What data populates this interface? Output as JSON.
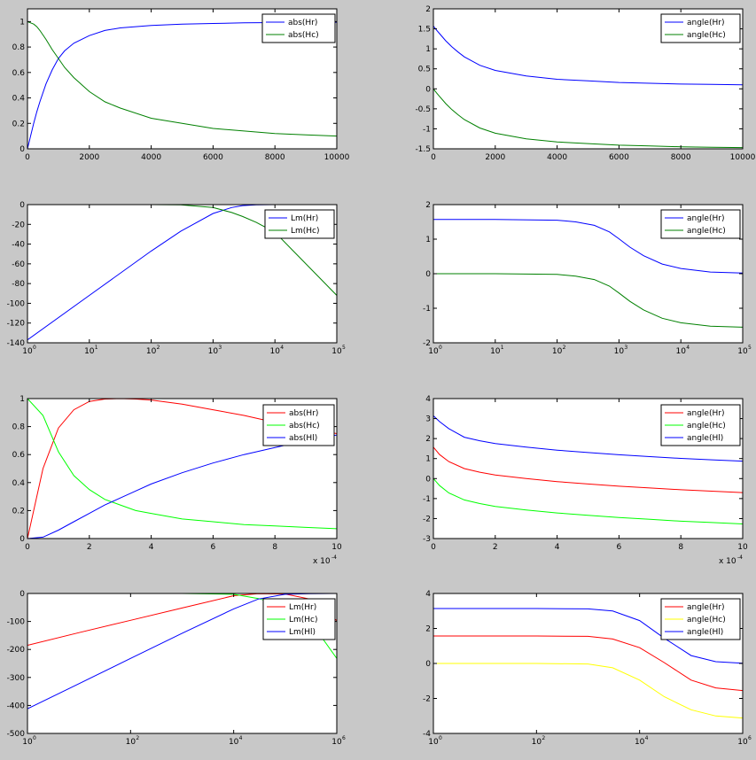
{
  "figure": {
    "background": "#c8c8c8"
  },
  "chart_data": [
    {
      "id": "p1",
      "type": "line",
      "xscale": "linear",
      "xlim": [
        0,
        10000
      ],
      "ylim": [
        0,
        1.1
      ],
      "xticks": [
        0,
        2000,
        4000,
        6000,
        8000,
        10000
      ],
      "xticklabels": [
        "0",
        "2000",
        "4000",
        "6000",
        "8000",
        "10000"
      ],
      "yticks": [
        0,
        0.2,
        0.4,
        0.6,
        0.8,
        1
      ],
      "yticklabels": [
        "0",
        "0.2",
        "0.4",
        "0.6",
        "0.8",
        "1"
      ],
      "x_multiplier": "",
      "series": [
        {
          "name": "abs(Hr)",
          "color": "#0000ff",
          "x": [
            0,
            100,
            200,
            300,
            400,
            600,
            800,
            1000,
            1200,
            1500,
            2000,
            2500,
            3000,
            4000,
            5000,
            6000,
            7000,
            8000,
            9000,
            10000
          ],
          "y": [
            0.0,
            0.1,
            0.2,
            0.29,
            0.37,
            0.51,
            0.62,
            0.71,
            0.77,
            0.83,
            0.89,
            0.93,
            0.95,
            0.97,
            0.98,
            0.985,
            0.99,
            0.992,
            0.994,
            0.995
          ]
        },
        {
          "name": "abs(Hc)",
          "color": "#008000",
          "x": [
            0,
            100,
            200,
            300,
            400,
            600,
            800,
            1000,
            1200,
            1500,
            2000,
            2500,
            3000,
            4000,
            5000,
            6000,
            7000,
            8000,
            9000,
            10000
          ],
          "y": [
            1.0,
            0.99,
            0.98,
            0.96,
            0.93,
            0.86,
            0.78,
            0.71,
            0.64,
            0.56,
            0.45,
            0.37,
            0.32,
            0.24,
            0.2,
            0.16,
            0.14,
            0.12,
            0.11,
            0.1
          ]
        }
      ]
    },
    {
      "id": "p2",
      "type": "line",
      "xscale": "linear",
      "xlim": [
        0,
        10000
      ],
      "ylim": [
        -1.5,
        2
      ],
      "xticks": [
        0,
        2000,
        4000,
        6000,
        8000,
        10000
      ],
      "xticklabels": [
        "0",
        "2000",
        "4000",
        "6000",
        "8000",
        "10000"
      ],
      "yticks": [
        -1.5,
        -1,
        -0.5,
        0,
        0.5,
        1,
        1.5,
        2
      ],
      "yticklabels": [
        "-1.5",
        "-1",
        "-0.5",
        "0",
        "0.5",
        "1",
        "1.5",
        "2"
      ],
      "x_multiplier": "",
      "series": [
        {
          "name": "angle(Hr)",
          "color": "#0000ff",
          "x": [
            0,
            100,
            200,
            400,
            600,
            800,
            1000,
            1500,
            2000,
            3000,
            4000,
            5000,
            6000,
            7000,
            8000,
            9000,
            10000
          ],
          "y": [
            1.57,
            1.47,
            1.38,
            1.2,
            1.05,
            0.92,
            0.8,
            0.59,
            0.46,
            0.32,
            0.24,
            0.2,
            0.16,
            0.14,
            0.12,
            0.11,
            0.1
          ]
        },
        {
          "name": "angle(Hc)",
          "color": "#008000",
          "x": [
            0,
            100,
            200,
            400,
            600,
            800,
            1000,
            1500,
            2000,
            3000,
            4000,
            5000,
            6000,
            7000,
            8000,
            9000,
            10000
          ],
          "y": [
            0.0,
            -0.1,
            -0.19,
            -0.37,
            -0.52,
            -0.65,
            -0.77,
            -0.98,
            -1.11,
            -1.25,
            -1.33,
            -1.37,
            -1.41,
            -1.43,
            -1.45,
            -1.46,
            -1.47
          ]
        }
      ]
    },
    {
      "id": "p3",
      "type": "line",
      "xscale": "log",
      "xlim": [
        1,
        100000
      ],
      "ylim": [
        -140,
        0
      ],
      "xticks": [
        1,
        10,
        100,
        1000,
        10000,
        100000
      ],
      "xticklabels": [
        "10",
        "10",
        "10",
        "10",
        "10",
        "10"
      ],
      "xtickexps": [
        "0",
        "1",
        "2",
        "3",
        "4",
        "5"
      ],
      "yticks": [
        -140,
        -120,
        -100,
        -80,
        -60,
        -40,
        -20,
        0
      ],
      "yticklabels": [
        "-140",
        "-120",
        "-100",
        "-80",
        "-60",
        "-40",
        "-20",
        "0"
      ],
      "x_multiplier": "",
      "series": [
        {
          "name": "Lm(Hr)",
          "color": "#0000ff",
          "x": [
            1,
            10,
            100,
            300,
            1000,
            2000,
            3000,
            5000,
            10000,
            100000
          ],
          "y": [
            -137,
            -92,
            -47,
            -27,
            -9,
            -3,
            -1,
            -0.3,
            0,
            0
          ]
        },
        {
          "name": "Lm(Hc)",
          "color": "#008000",
          "x": [
            1,
            10,
            100,
            300,
            1000,
            2000,
            3000,
            5000,
            10000,
            100000
          ],
          "y": [
            0,
            0,
            0,
            -0.3,
            -3,
            -8,
            -12,
            -18,
            -28,
            -92
          ]
        }
      ]
    },
    {
      "id": "p4",
      "type": "line",
      "xscale": "log",
      "xlim": [
        1,
        100000
      ],
      "ylim": [
        -2,
        2
      ],
      "xticks": [
        1,
        10,
        100,
        1000,
        10000,
        100000
      ],
      "xticklabels": [
        "10",
        "10",
        "10",
        "10",
        "10",
        "10"
      ],
      "xtickexps": [
        "0",
        "1",
        "2",
        "3",
        "4",
        "5"
      ],
      "yticks": [
        -2,
        -1,
        0,
        1,
        2
      ],
      "yticklabels": [
        "-2",
        "-1",
        "0",
        "1",
        "2"
      ],
      "x_multiplier": "",
      "series": [
        {
          "name": "angle(Hr)",
          "color": "#0000ff",
          "x": [
            1,
            10,
            100,
            200,
            400,
            700,
            1000,
            1500,
            2500,
            5000,
            10000,
            30000,
            100000
          ],
          "y": [
            1.57,
            1.57,
            1.55,
            1.5,
            1.4,
            1.21,
            1.01,
            0.77,
            0.52,
            0.28,
            0.15,
            0.05,
            0.02
          ]
        },
        {
          "name": "angle(Hc)",
          "color": "#008000",
          "x": [
            1,
            10,
            100,
            200,
            400,
            700,
            1000,
            1500,
            2500,
            5000,
            10000,
            30000,
            100000
          ],
          "y": [
            0.0,
            0.0,
            -0.02,
            -0.07,
            -0.17,
            -0.36,
            -0.56,
            -0.8,
            -1.05,
            -1.29,
            -1.42,
            -1.52,
            -1.55
          ]
        }
      ]
    },
    {
      "id": "p5",
      "type": "line",
      "xscale": "linear",
      "xlim": [
        0,
        0.001
      ],
      "ylim": [
        0,
        1
      ],
      "xticks": [
        0,
        0.0002,
        0.0004,
        0.0006,
        0.0008,
        0.001
      ],
      "xticklabels": [
        "0",
        "2",
        "4",
        "6",
        "8",
        "10"
      ],
      "yticks": [
        0,
        0.2,
        0.4,
        0.6,
        0.8,
        1
      ],
      "yticklabels": [
        "0",
        "0.2",
        "0.4",
        "0.6",
        "0.8",
        "1"
      ],
      "x_multiplier": "x 10",
      "x_multiplier_exp": "-4",
      "series": [
        {
          "name": "abs(Hr)",
          "color": "#ff0000",
          "x": [
            0,
            5e-05,
            0.0001,
            0.00015,
            0.0002,
            0.00025,
            0.0003,
            0.00035,
            0.0004,
            0.0005,
            0.0006,
            0.0007,
            0.0008,
            0.0009,
            0.001
          ],
          "y": [
            0.0,
            0.5,
            0.79,
            0.92,
            0.98,
            0.997,
            1.0,
            0.997,
            0.99,
            0.96,
            0.92,
            0.88,
            0.83,
            0.79,
            0.75
          ]
        },
        {
          "name": "abs(Hc)",
          "color": "#00ff00",
          "x": [
            0,
            5e-05,
            0.0001,
            0.00015,
            0.0002,
            0.00025,
            0.0003,
            0.00035,
            0.0004,
            0.0005,
            0.0006,
            0.0007,
            0.0008,
            0.0009,
            0.001
          ],
          "y": [
            1.0,
            0.88,
            0.62,
            0.45,
            0.35,
            0.28,
            0.24,
            0.2,
            0.18,
            0.14,
            0.12,
            0.1,
            0.09,
            0.08,
            0.07
          ]
        },
        {
          "name": "abs(Hl)",
          "color": "#0000ff",
          "x": [
            0,
            5e-05,
            0.0001,
            0.00015,
            0.0002,
            0.00025,
            0.0003,
            0.00035,
            0.0004,
            0.0005,
            0.0006,
            0.0007,
            0.0008,
            0.0009,
            0.001
          ],
          "y": [
            0.0,
            0.01,
            0.06,
            0.12,
            0.18,
            0.24,
            0.29,
            0.34,
            0.39,
            0.47,
            0.54,
            0.6,
            0.65,
            0.7,
            0.74
          ]
        }
      ]
    },
    {
      "id": "p6",
      "type": "line",
      "xscale": "linear",
      "xlim": [
        0,
        0.001
      ],
      "ylim": [
        -3,
        4
      ],
      "xticks": [
        0,
        0.0002,
        0.0004,
        0.0006,
        0.0008,
        0.001
      ],
      "xticklabels": [
        "0",
        "2",
        "4",
        "6",
        "8",
        "10"
      ],
      "yticks": [
        -3,
        -2,
        -1,
        0,
        1,
        2,
        3,
        4
      ],
      "yticklabels": [
        "-3",
        "-2",
        "-1",
        "0",
        "1",
        "2",
        "3",
        "4"
      ],
      "x_multiplier": "x 10",
      "x_multiplier_exp": "-4",
      "series": [
        {
          "name": "angle(Hr)",
          "color": "#ff0000",
          "x": [
            0,
            2e-05,
            5e-05,
            0.0001,
            0.00015,
            0.0002,
            0.0003,
            0.0004,
            0.0005,
            0.0006,
            0.0007,
            0.0008,
            0.0009,
            0.001
          ],
          "y": [
            1.57,
            1.2,
            0.85,
            0.5,
            0.32,
            0.18,
            0.0,
            -0.15,
            -0.27,
            -0.38,
            -0.47,
            -0.56,
            -0.63,
            -0.7
          ]
        },
        {
          "name": "angle(Hc)",
          "color": "#00ff00",
          "x": [
            0,
            2e-05,
            5e-05,
            0.0001,
            0.00015,
            0.0002,
            0.0003,
            0.0004,
            0.0005,
            0.0006,
            0.0007,
            0.0008,
            0.0009,
            0.001
          ],
          "y": [
            0.0,
            -0.35,
            -0.72,
            -1.07,
            -1.25,
            -1.39,
            -1.57,
            -1.72,
            -1.84,
            -1.95,
            -2.04,
            -2.13,
            -2.2,
            -2.27
          ]
        },
        {
          "name": "angle(Hl)",
          "color": "#0000ff",
          "x": [
            0,
            2e-05,
            5e-05,
            0.0001,
            0.00015,
            0.0002,
            0.0003,
            0.0004,
            0.0005,
            0.0006,
            0.0007,
            0.0008,
            0.0009,
            0.001
          ],
          "y": [
            3.14,
            2.85,
            2.5,
            2.07,
            1.89,
            1.75,
            1.57,
            1.42,
            1.3,
            1.19,
            1.1,
            1.01,
            0.94,
            0.87
          ]
        }
      ]
    },
    {
      "id": "p7",
      "type": "line",
      "xscale": "log",
      "xlim": [
        1,
        1000000
      ],
      "ylim": [
        -500,
        0
      ],
      "xticks": [
        1,
        100,
        10000,
        1000000
      ],
      "xticklabels": [
        "10",
        "10",
        "10",
        "10"
      ],
      "xtickexps": [
        "0",
        "2",
        "4",
        "6"
      ],
      "yticks": [
        -500,
        -400,
        -300,
        -200,
        -100,
        0
      ],
      "yticklabels": [
        "-500",
        "-400",
        "-300",
        "-200",
        "-100",
        "0"
      ],
      "x_multiplier": "",
      "series": [
        {
          "name": "Lm(Hr)",
          "color": "#ff0000",
          "x": [
            1,
            10,
            100,
            1000,
            10000,
            30000,
            100000,
            300000,
            1000000
          ],
          "y": [
            -185,
            -140,
            -96,
            -52,
            -8,
            -1,
            -2,
            -20,
            -97
          ]
        },
        {
          "name": "Lm(Hc)",
          "color": "#00ff00",
          "x": [
            1,
            10,
            100,
            1000,
            10000,
            30000,
            100000,
            300000,
            1000000
          ],
          "y": [
            0,
            0,
            0,
            0,
            -3,
            -18,
            -44,
            -97,
            -232
          ]
        },
        {
          "name": "Lm(Hl)",
          "color": "#0000ff",
          "x": [
            1,
            10,
            100,
            1000,
            10000,
            30000,
            100000,
            300000,
            1000000
          ],
          "y": [
            -412,
            -322,
            -232,
            -142,
            -55,
            -20,
            -3,
            -1,
            0
          ]
        }
      ]
    },
    {
      "id": "p8",
      "type": "line",
      "xscale": "log",
      "xlim": [
        1,
        1000000
      ],
      "ylim": [
        -4,
        4
      ],
      "xticks": [
        1,
        100,
        10000,
        1000000
      ],
      "xticklabels": [
        "10",
        "10",
        "10",
        "10"
      ],
      "xtickexps": [
        "0",
        "2",
        "4",
        "6"
      ],
      "yticks": [
        -4,
        -2,
        0,
        2,
        4
      ],
      "yticklabels": [
        "-4",
        "-2",
        "0",
        "2",
        "4"
      ],
      "x_multiplier": "",
      "series": [
        {
          "name": "angle(Hr)",
          "color": "#ff0000",
          "x": [
            1,
            10,
            100,
            1000,
            3000,
            10000,
            30000,
            100000,
            300000,
            1000000
          ],
          "y": [
            1.57,
            1.57,
            1.57,
            1.55,
            1.4,
            0.9,
            0.05,
            -0.95,
            -1.4,
            -1.55
          ]
        },
        {
          "name": "angle(Hc)",
          "color": "#ffff00",
          "x": [
            1,
            10,
            100,
            1000,
            3000,
            10000,
            30000,
            100000,
            300000,
            1000000
          ],
          "y": [
            0.0,
            0.0,
            0.0,
            -0.03,
            -0.25,
            -0.95,
            -1.9,
            -2.65,
            -3.0,
            -3.12
          ]
        },
        {
          "name": "angle(Hl)",
          "color": "#0000ff",
          "x": [
            1,
            10,
            100,
            1000,
            3000,
            10000,
            30000,
            100000,
            300000,
            1000000
          ],
          "y": [
            3.14,
            3.14,
            3.14,
            3.12,
            3.0,
            2.45,
            1.45,
            0.45,
            0.1,
            0.01
          ]
        }
      ]
    }
  ]
}
